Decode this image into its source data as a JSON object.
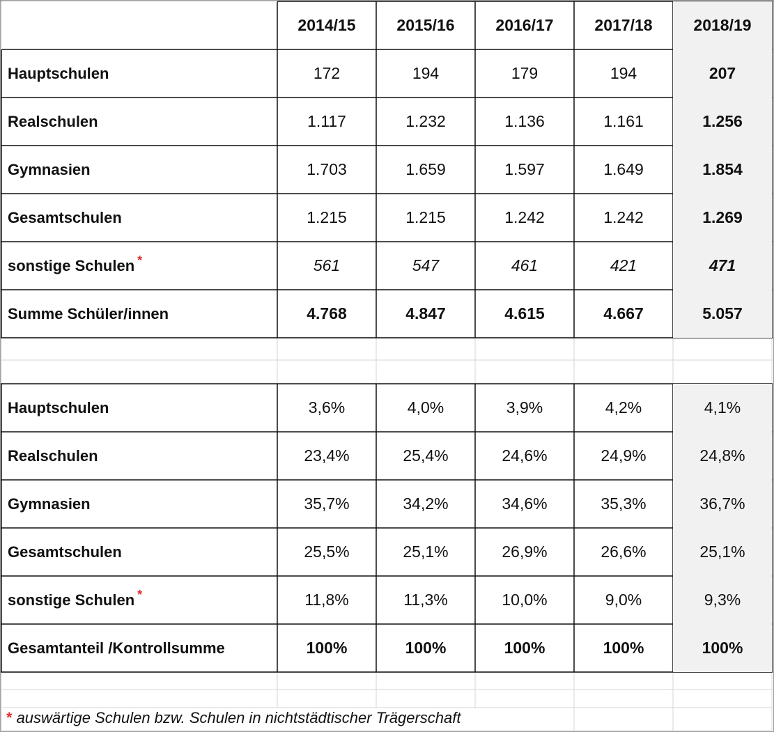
{
  "years": [
    "2014/15",
    "2015/16",
    "2016/17",
    "2017/18",
    "2018/19"
  ],
  "absolute": {
    "rows": [
      {
        "label": "Hauptschulen",
        "star": false,
        "values": [
          "172",
          "194",
          "179",
          "194",
          "207"
        ]
      },
      {
        "label": "Realschulen",
        "star": false,
        "values": [
          "1.117",
          "1.232",
          "1.136",
          "1.161",
          "1.256"
        ]
      },
      {
        "label": "Gymnasien",
        "star": false,
        "values": [
          "1.703",
          "1.659",
          "1.597",
          "1.649",
          "1.854"
        ]
      },
      {
        "label": "Gesamtschulen",
        "star": false,
        "values": [
          "1.215",
          "1.215",
          "1.242",
          "1.242",
          "1.269"
        ]
      },
      {
        "label": "sonstige Schulen",
        "star": true,
        "italic": true,
        "values": [
          "561",
          "547",
          "461",
          "421",
          "471"
        ]
      }
    ],
    "total": {
      "label": "Summe Schüler/innen",
      "values": [
        "4.768",
        "4.847",
        "4.615",
        "4.667",
        "5.057"
      ]
    }
  },
  "share": {
    "rows": [
      {
        "label": "Hauptschulen",
        "star": false,
        "values": [
          "3,6%",
          "4,0%",
          "3,9%",
          "4,2%",
          "4,1%"
        ]
      },
      {
        "label": "Realschulen",
        "star": false,
        "values": [
          "23,4%",
          "25,4%",
          "24,6%",
          "24,9%",
          "24,8%"
        ]
      },
      {
        "label": "Gymnasien",
        "star": false,
        "values": [
          "35,7%",
          "34,2%",
          "34,6%",
          "35,3%",
          "36,7%"
        ]
      },
      {
        "label": "Gesamtschulen",
        "star": false,
        "values": [
          "25,5%",
          "25,1%",
          "26,9%",
          "26,6%",
          "25,1%"
        ]
      },
      {
        "label": "sonstige Schulen",
        "star": true,
        "values": [
          "11,8%",
          "11,3%",
          "10,0%",
          "9,0%",
          "9,3%"
        ]
      }
    ],
    "total": {
      "label": "Gesamtanteil /Kontrollsumme",
      "values": [
        "100%",
        "100%",
        "100%",
        "100%",
        "100%"
      ]
    }
  },
  "star_symbol": "*",
  "footnote": "auswärtige Schulen bzw. Schulen in nichtstädtischer Trägerschaft",
  "colors": {
    "star": "#e03030",
    "highlight_column": "#f1f1f1"
  }
}
